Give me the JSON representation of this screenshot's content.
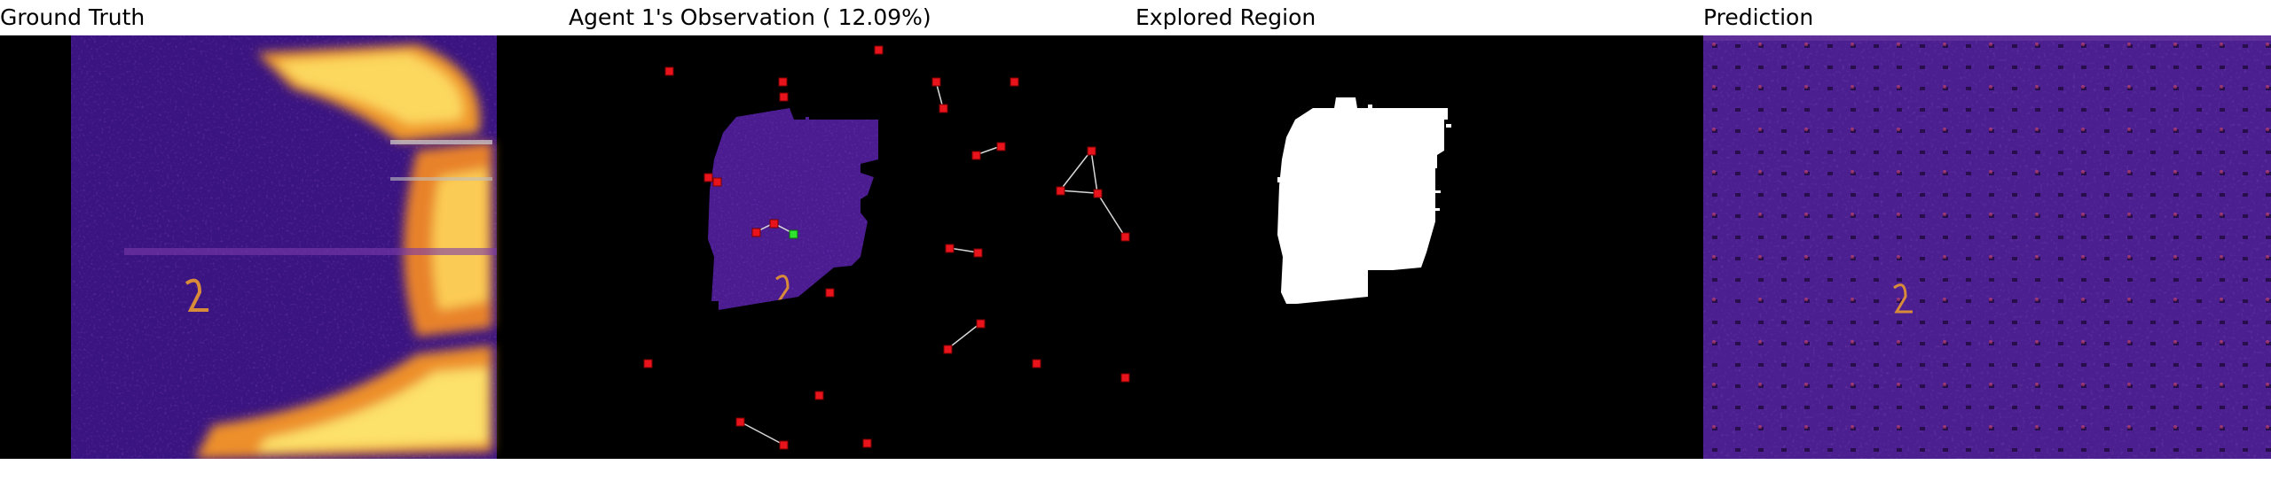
{
  "titles": {
    "ground_truth": "Ground Truth",
    "observation": "Agent 1's Observation ( 12.09%)",
    "explored": "Explored Region",
    "prediction": "Prediction"
  },
  "colors": {
    "background": "#000000",
    "heatmap_low": "#2a0e5c",
    "heatmap_mid": "#5a1f9a",
    "heatmap_hot": "#f2a12b",
    "heatmap_peak": "#fce16a",
    "agent_marker": "#e8131b",
    "self_marker": "#2fe32f",
    "link_line": "#d8d8d8",
    "explored_mask": "#ffffff"
  }
}
